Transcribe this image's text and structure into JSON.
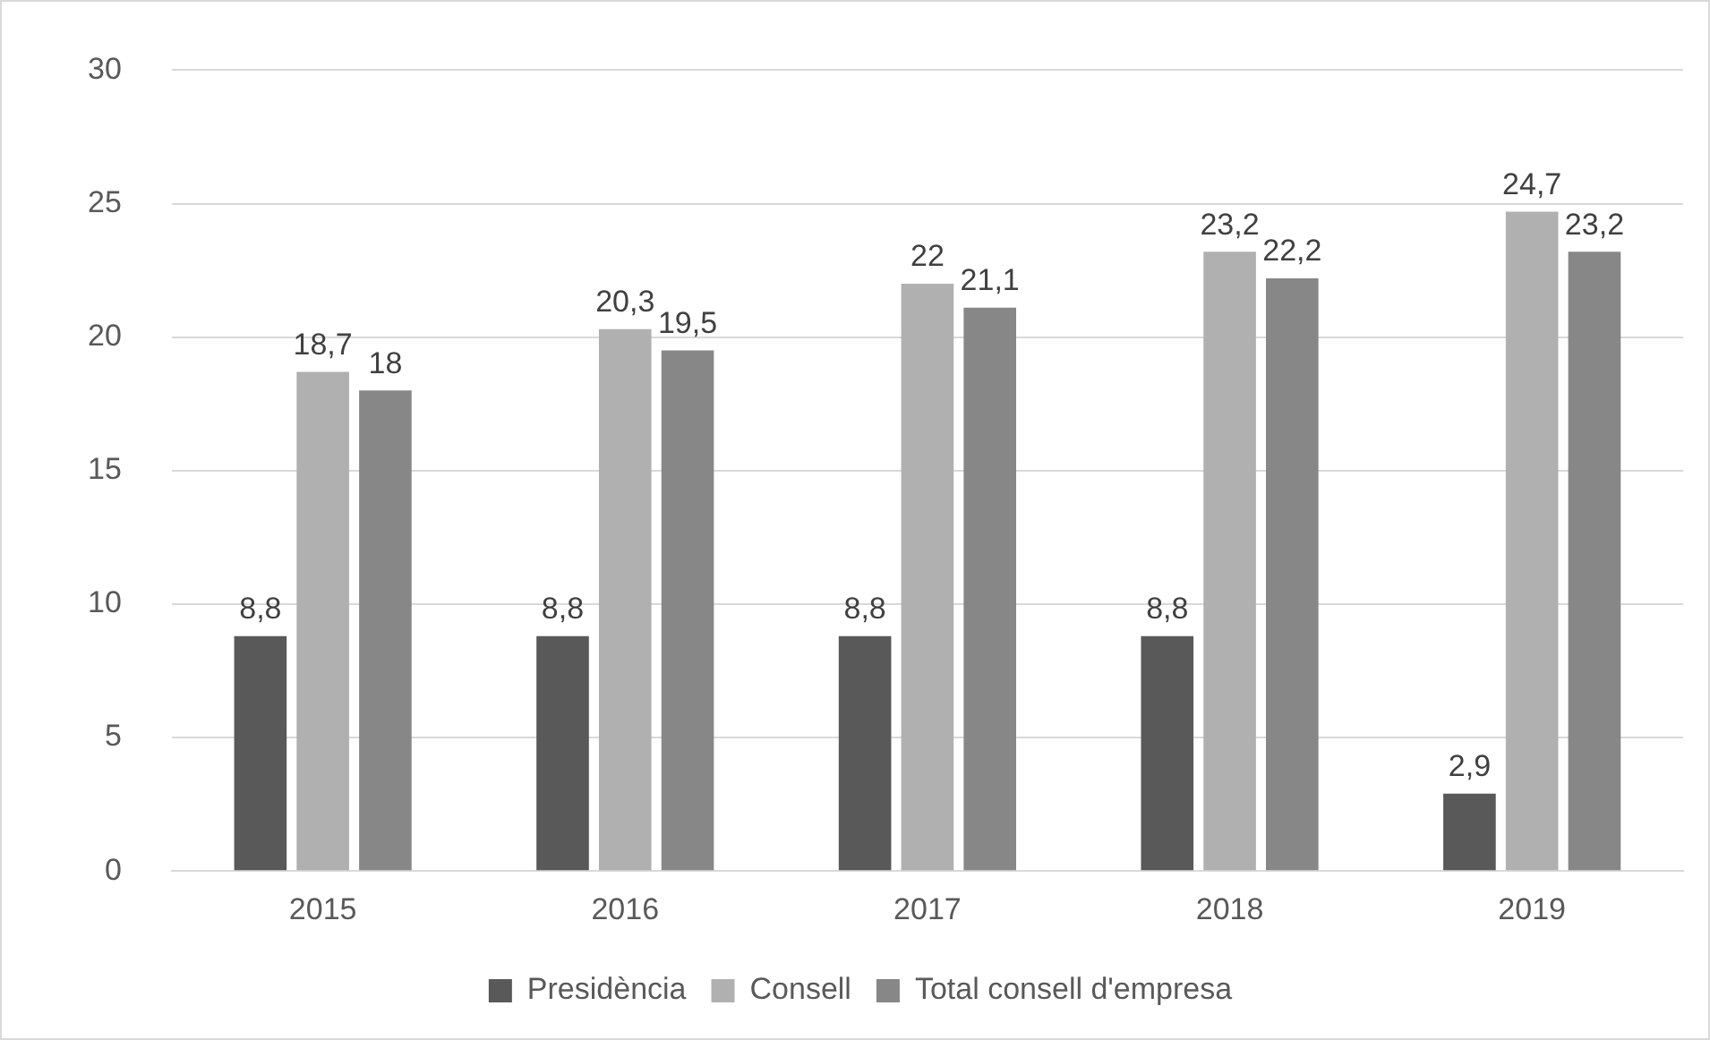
{
  "chart_data": {
    "type": "bar",
    "categories": [
      "2015",
      "2016",
      "2017",
      "2018",
      "2019"
    ],
    "series": [
      {
        "name": "Presidència",
        "color": "#595959",
        "values": [
          8.8,
          8.8,
          8.8,
          8.8,
          2.9
        ],
        "value_labels": [
          "8,8",
          "8,8",
          "8,8",
          "8,8",
          "2,9"
        ]
      },
      {
        "name": "Consell",
        "color": "#b0b0b0",
        "values": [
          18.7,
          20.3,
          22,
          23.2,
          24.7
        ],
        "value_labels": [
          "18,7",
          "20,3",
          "22",
          "23,2",
          "24,7"
        ]
      },
      {
        "name": "Total consell d'empresa",
        "color": "#878787",
        "values": [
          18,
          19.5,
          21.1,
          22.2,
          23.2
        ],
        "value_labels": [
          "18",
          "19,5",
          "21,1",
          "22,2",
          "23,2"
        ]
      }
    ],
    "ylim": [
      0,
      30
    ],
    "yticks": [
      0,
      5,
      10,
      15,
      20,
      25,
      30
    ],
    "grid": "y",
    "legend": "bottom"
  }
}
